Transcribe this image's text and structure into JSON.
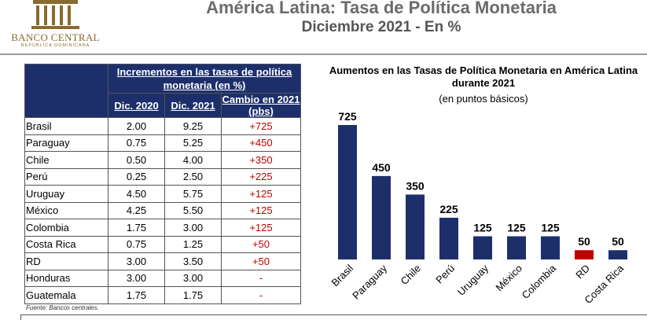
{
  "header": {
    "title": "América Latina: Tasa de Política Monetaria",
    "subtitle": "Diciembre 2021 - En %",
    "logo_name": "BANCO CENTRAL",
    "logo_sub": "REPÚBLICA DOMINICANA"
  },
  "table": {
    "group_header": "Incrementos en las tasas de política monetaria (en %)",
    "columns": [
      "Dic. 2020",
      "Dic. 2021",
      "Cambio en 2021 (pbs)"
    ],
    "rows": [
      {
        "country": "Brasil",
        "dic2020": "2.00",
        "dic2021": "9.25",
        "change": "+725"
      },
      {
        "country": "Paraguay",
        "dic2020": "0.75",
        "dic2021": "5.25",
        "change": "+450"
      },
      {
        "country": "Chile",
        "dic2020": "0.50",
        "dic2021": "4.00",
        "change": "+350"
      },
      {
        "country": "Perú",
        "dic2020": "0.25",
        "dic2021": "2.50",
        "change": "+225"
      },
      {
        "country": "Uruguay",
        "dic2020": "4.50",
        "dic2021": "5.75",
        "change": "+125"
      },
      {
        "country": "México",
        "dic2020": "4.25",
        "dic2021": "5.50",
        "change": "+125"
      },
      {
        "country": "Colombia",
        "dic2020": "1.75",
        "dic2021": "3.00",
        "change": "+125"
      },
      {
        "country": "Costa Rica",
        "dic2020": "0.75",
        "dic2021": "1.25",
        "change": "+50"
      },
      {
        "country": "RD",
        "dic2020": "3.00",
        "dic2021": "3.50",
        "change": "+50"
      },
      {
        "country": "Honduras",
        "dic2020": "3.00",
        "dic2021": "3.00",
        "change": "-"
      },
      {
        "country": "Guatemala",
        "dic2020": "1.75",
        "dic2021": "1.75",
        "change": "-"
      }
    ],
    "source": "Fuente: Bancos centrales."
  },
  "chart_data": {
    "type": "bar",
    "title": "Aumentos  en las Tasas de Política Monetaria en América  Latina durante 2021",
    "unit_label": "(en puntos básicos)",
    "categories": [
      "Brasil",
      "Paraguay",
      "Chile",
      "Perú",
      "Uruguay",
      "México",
      "Colombia",
      "RD",
      "Costa Rica"
    ],
    "values": [
      725,
      450,
      350,
      225,
      125,
      125,
      125,
      50,
      50
    ],
    "colors": [
      "#1d2f6b",
      "#1d2f6b",
      "#1d2f6b",
      "#1d2f6b",
      "#1d2f6b",
      "#1d2f6b",
      "#1d2f6b",
      "#c00000",
      "#1d2f6b"
    ],
    "ylim": [
      0,
      725
    ],
    "grid": false
  }
}
